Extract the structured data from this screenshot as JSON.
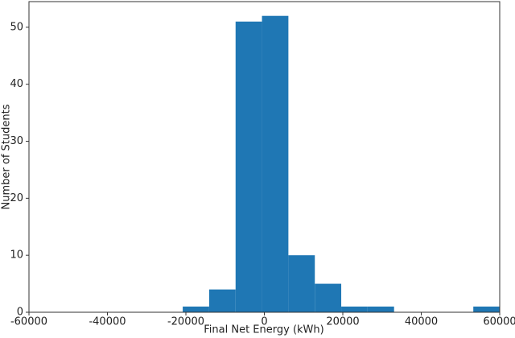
{
  "chart_data": {
    "type": "histogram",
    "xlabel": "Final Net Energy (kWh)",
    "ylabel": "Number of Students",
    "bins": [
      -20800,
      -14070,
      -7330,
      -600,
      6130,
      12870,
      19600,
      26330,
      33070,
      39800,
      46530,
      53270,
      60000
    ],
    "values": [
      1,
      4,
      51,
      52,
      10,
      5,
      1,
      1,
      0,
      0,
      0,
      1
    ],
    "color": "#1f77b4",
    "xlim": [
      -60000,
      60000
    ],
    "xticks": [
      -60000,
      -40000,
      -20000,
      0,
      20000,
      40000,
      60000
    ],
    "ylim": [
      0,
      54.5
    ],
    "yticks": [
      0,
      10,
      20,
      30,
      40,
      50
    ]
  }
}
